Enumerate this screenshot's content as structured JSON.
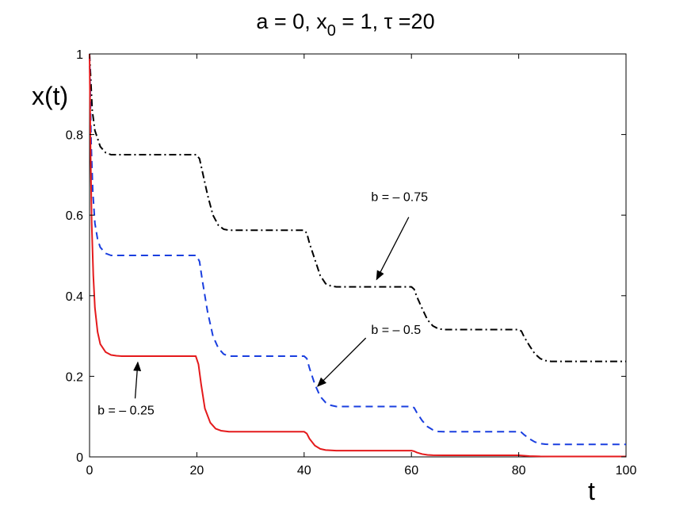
{
  "chart_data": {
    "type": "line",
    "title": {
      "text": "a = 0, x",
      "sub": "0",
      "rest": " = 1, τ =20"
    },
    "xlabel": "t",
    "ylabel": "x(t)",
    "xlim": [
      0,
      100
    ],
    "ylim": [
      0,
      1
    ],
    "xticks": [
      0,
      20,
      40,
      60,
      80,
      100
    ],
    "xtick_labels": [
      "0",
      "20",
      "40",
      "60",
      "80",
      "100"
    ],
    "yticks": [
      0,
      0.2,
      0.4,
      0.6,
      0.8,
      1
    ],
    "ytick_labels": [
      "0",
      "0.2",
      "0.4",
      "0.6",
      "0.8",
      "1"
    ],
    "grid": false,
    "series": [
      {
        "name": "b = – 0.75",
        "color": "#000000",
        "dash": "dash-dot",
        "x": [
          0,
          0.5,
          1,
          2,
          3,
          4,
          5,
          10,
          15,
          19.9,
          20.5,
          21,
          22,
          23,
          24,
          25,
          26,
          30,
          35,
          40,
          40.5,
          41,
          42,
          43,
          44,
          45,
          46,
          50,
          55,
          60,
          60.5,
          61,
          62,
          63,
          64,
          65,
          66,
          70,
          75,
          80,
          80.5,
          81,
          82,
          83,
          84,
          85,
          86,
          90,
          95,
          100
        ],
        "values": [
          1,
          0.86,
          0.81,
          0.77,
          0.755,
          0.75,
          0.75,
          0.75,
          0.75,
          0.75,
          0.74,
          0.71,
          0.65,
          0.6,
          0.575,
          0.565,
          0.5625,
          0.5625,
          0.5625,
          0.5625,
          0.555,
          0.53,
          0.49,
          0.45,
          0.43,
          0.424,
          0.422,
          0.422,
          0.422,
          0.422,
          0.416,
          0.398,
          0.368,
          0.34,
          0.325,
          0.318,
          0.316,
          0.316,
          0.316,
          0.316,
          0.312,
          0.298,
          0.276,
          0.256,
          0.244,
          0.239,
          0.237,
          0.237,
          0.237,
          0.237
        ]
      },
      {
        "name": "b = – 0.5",
        "color": "#1a3fdf",
        "dash": "dash",
        "x": [
          0,
          0.3,
          0.6,
          1,
          1.5,
          2,
          3,
          4,
          5,
          10,
          15,
          19.9,
          20.5,
          21,
          22,
          23,
          24,
          25,
          26,
          30,
          35,
          40,
          40.5,
          41,
          42,
          43,
          44,
          45,
          46,
          50,
          55,
          60,
          60.5,
          61,
          62,
          63,
          64,
          65,
          66,
          70,
          75,
          80,
          80.5,
          81,
          82,
          83,
          84,
          85,
          86,
          90,
          95,
          100
        ],
        "values": [
          1,
          0.78,
          0.66,
          0.58,
          0.54,
          0.52,
          0.505,
          0.5,
          0.5,
          0.5,
          0.5,
          0.5,
          0.485,
          0.44,
          0.36,
          0.3,
          0.27,
          0.255,
          0.25,
          0.25,
          0.25,
          0.25,
          0.244,
          0.22,
          0.18,
          0.15,
          0.135,
          0.128,
          0.125,
          0.125,
          0.125,
          0.125,
          0.122,
          0.11,
          0.09,
          0.075,
          0.067,
          0.063,
          0.0625,
          0.0625,
          0.0625,
          0.0625,
          0.061,
          0.055,
          0.045,
          0.037,
          0.033,
          0.0315,
          0.031,
          0.031,
          0.031,
          0.031
        ]
      },
      {
        "name": "b = – 0.25",
        "color": "#e41a1c",
        "dash": "solid",
        "x": [
          0,
          0.2,
          0.4,
          0.7,
          1,
          1.5,
          2,
          3,
          4,
          5,
          6,
          8,
          10,
          15,
          19.8,
          20.3,
          20.8,
          21.5,
          22.5,
          23.5,
          24.5,
          26,
          30,
          35,
          40,
          40.5,
          41,
          42,
          43,
          44,
          46,
          50,
          55,
          60,
          60.5,
          61,
          62,
          63,
          64,
          66,
          70,
          75,
          80,
          81,
          82,
          84,
          86,
          90,
          95,
          100
        ],
        "values": [
          1,
          0.75,
          0.58,
          0.45,
          0.37,
          0.31,
          0.28,
          0.26,
          0.253,
          0.251,
          0.25,
          0.25,
          0.25,
          0.25,
          0.25,
          0.23,
          0.18,
          0.12,
          0.085,
          0.07,
          0.065,
          0.0625,
          0.0625,
          0.0625,
          0.0625,
          0.058,
          0.045,
          0.028,
          0.02,
          0.017,
          0.0156,
          0.0156,
          0.0156,
          0.0156,
          0.014,
          0.011,
          0.007,
          0.005,
          0.0042,
          0.0039,
          0.0039,
          0.0039,
          0.0039,
          0.003,
          0.002,
          0.0012,
          0.001,
          0.001,
          0.001,
          0.001
        ]
      }
    ],
    "annotations": [
      {
        "text": "b = – 0.75",
        "text_at": [
          52.5,
          0.635
        ],
        "arrow_from": [
          59.5,
          0.595
        ],
        "arrow_to": [
          53.5,
          0.44
        ]
      },
      {
        "text": "b = – 0.5",
        "text_at": [
          52.5,
          0.305
        ],
        "arrow_from": [
          51.5,
          0.295
        ],
        "arrow_to": [
          42.5,
          0.175
        ]
      },
      {
        "text": "b = – 0.25",
        "text_at": [
          1.5,
          0.105
        ],
        "arrow_from": [
          8.5,
          0.145
        ],
        "arrow_to": [
          9,
          0.235
        ]
      }
    ]
  }
}
